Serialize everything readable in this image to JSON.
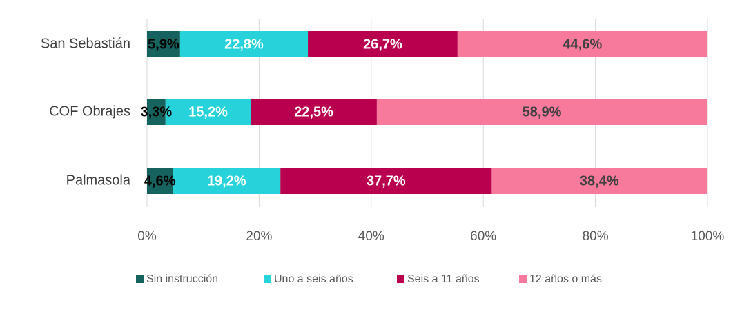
{
  "chart_data": {
    "type": "stacked_barh",
    "categories": [
      "San Sebastián",
      "COF Obrajes",
      "Palmasola"
    ],
    "series": [
      {
        "name": "Sin instrucción",
        "color": "#15625f",
        "label_color": "#000000",
        "values": [
          5.9,
          3.3,
          4.6
        ],
        "value_labels": [
          "5,9%",
          "3,3%",
          "4,6%"
        ]
      },
      {
        "name": "Uno a seis años",
        "color": "#27d2da",
        "label_color": "#ffffff",
        "values": [
          22.8,
          15.2,
          19.2
        ],
        "value_labels": [
          "22,8%",
          "15,2%",
          "19,2%"
        ]
      },
      {
        "name": "Seis a 11 años",
        "color": "#b8004f",
        "label_color": "#ffffff",
        "values": [
          26.7,
          22.5,
          37.7
        ],
        "value_labels": [
          "26,7%",
          "22,5%",
          "37,7%"
        ]
      },
      {
        "name": "12 años o más",
        "color": "#f77a9c",
        "label_color": "#404040",
        "values": [
          44.6,
          58.9,
          38.4
        ],
        "value_labels": [
          "44,6%",
          "58,9%",
          "38,4%"
        ]
      }
    ],
    "xlim": [
      0,
      100
    ],
    "xticks": [
      {
        "value": 0,
        "label": "0%"
      },
      {
        "value": 20,
        "label": "20%"
      },
      {
        "value": 40,
        "label": "40%"
      },
      {
        "value": 60,
        "label": "60%"
      },
      {
        "value": 80,
        "label": "80%"
      },
      {
        "value": 100,
        "label": "100%"
      }
    ],
    "grid": true,
    "legend": "bottom"
  }
}
